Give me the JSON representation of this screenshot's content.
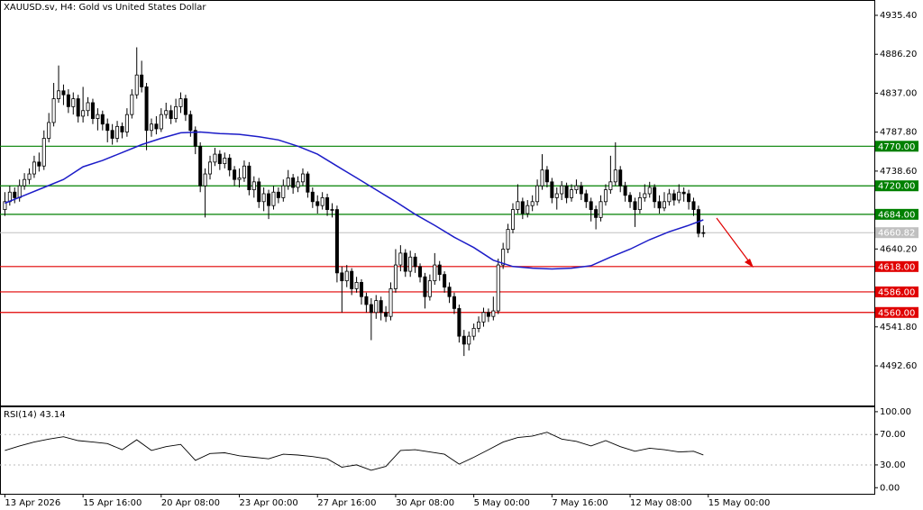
{
  "chart_data": {
    "type": "candlestick",
    "title": "XAUUSD.sv, H4:  Gold vs United States Dollar",
    "up_color": "#ffffff",
    "down_color": "#000000",
    "edge_color": "#000000",
    "xlim": [
      -1,
      178
    ],
    "ylim": [
      4442.5,
      4954.75
    ],
    "xticks": [
      {
        "value": 0,
        "label": "13 Apr 2026"
      },
      {
        "value": 16,
        "label": "15 Apr 16:00"
      },
      {
        "value": 32,
        "label": "20 Apr 08:00"
      },
      {
        "value": 48,
        "label": "23 Apr 00:00"
      },
      {
        "value": 64,
        "label": "27 Apr 16:00"
      },
      {
        "value": 80,
        "label": "30 Apr 08:00"
      },
      {
        "value": 96,
        "label": "5 May 00:00"
      },
      {
        "value": 112,
        "label": "7 May 16:00"
      },
      {
        "value": 128,
        "label": "12 May 08:00"
      },
      {
        "value": 144,
        "label": "15 May 00:00"
      }
    ],
    "yticks": [
      {
        "value": 4935.4,
        "label": "4935.40"
      },
      {
        "value": 4886.2,
        "label": "4886.20"
      },
      {
        "value": 4837,
        "label": "4837.00"
      },
      {
        "value": 4787.8,
        "label": "4787.80"
      },
      {
        "value": 4738.6,
        "label": "4738.60"
      },
      {
        "value": 4640.2,
        "label": "4640.20"
      },
      {
        "value": 4541.8,
        "label": "4541.80"
      },
      {
        "value": 4492.6,
        "label": "4492.60"
      }
    ],
    "open": [
      4690,
      4700,
      4712,
      4705,
      4720,
      4728,
      4735,
      4750,
      4745,
      4780,
      4800,
      4830,
      4840,
      4835,
      4820,
      4830,
      4808,
      4815,
      4825,
      4805,
      4810,
      4798,
      4790,
      4780,
      4795,
      4788,
      4810,
      4835,
      4860,
      4845,
      4790,
      4798,
      4792,
      4810,
      4815,
      4805,
      4820,
      4830,
      4810,
      4790,
      4770,
      4720,
      4735,
      4750,
      4760,
      4748,
      4755,
      4740,
      4728,
      4730,
      4745,
      4715,
      4725,
      4700,
      4710,
      4695,
      4712,
      4705,
      4720,
      4730,
      4718,
      4725,
      4735,
      4712,
      4700,
      4695,
      4705,
      4690,
      4690,
      4610,
      4600,
      4612,
      4590,
      4598,
      4580,
      4570,
      4560,
      4575,
      4560,
      4555,
      4590,
      4620,
      4635,
      4612,
      4630,
      4618,
      4605,
      4580,
      4600,
      4620,
      4608,
      4592,
      4580,
      4565,
      4530,
      4520,
      4530,
      4540,
      4548,
      4560,
      4555,
      4562,
      4620,
      4640,
      4665,
      4690,
      4700,
      4685,
      4695,
      4700,
      4720,
      4740,
      4725,
      4705,
      4710,
      4720,
      4705,
      4715,
      4720,
      4710,
      4700,
      4690,
      4680,
      4700,
      4715,
      4725,
      4740,
      4720,
      4708,
      4700,
      4690,
      4705,
      4710,
      4718,
      4700,
      4692,
      4700,
      4710,
      4702,
      4712,
      4710,
      4700,
      4690,
      4660
    ],
    "high": [
      4712,
      4720,
      4718,
      4728,
      4736,
      4742,
      4758,
      4762,
      4790,
      4812,
      4850,
      4872,
      4848,
      4842,
      4838,
      4835,
      4845,
      4832,
      4830,
      4818,
      4815,
      4805,
      4798,
      4802,
      4800,
      4818,
      4842,
      4895,
      4878,
      4850,
      4805,
      4808,
      4818,
      4825,
      4822,
      4830,
      4838,
      4835,
      4815,
      4795,
      4775,
      4742,
      4758,
      4768,
      4765,
      4762,
      4760,
      4745,
      4742,
      4752,
      4750,
      4732,
      4730,
      4718,
      4715,
      4720,
      4718,
      4728,
      4740,
      4735,
      4732,
      4742,
      4738,
      4718,
      4708,
      4712,
      4710,
      4698,
      4695,
      4618,
      4620,
      4616,
      4605,
      4602,
      4585,
      4578,
      4582,
      4580,
      4568,
      4598,
      4640,
      4645,
      4640,
      4638,
      4635,
      4622,
      4610,
      4608,
      4635,
      4625,
      4612,
      4598,
      4585,
      4570,
      4538,
      4536,
      4546,
      4555,
      4566,
      4565,
      4580,
      4628,
      4648,
      4672,
      4698,
      4722,
      4705,
      4702,
      4708,
      4728,
      4760,
      4745,
      4730,
      4718,
      4726,
      4724,
      4722,
      4728,
      4725,
      4715,
      4705,
      4695,
      4708,
      4722,
      4758,
      4775,
      4745,
      4725,
      4712,
      4705,
      4712,
      4722,
      4725,
      4722,
      4708,
      4712,
      4716,
      4715,
      4722,
      4718,
      4715,
      4705,
      4695,
      4670
    ],
    "low": [
      4682,
      4695,
      4698,
      4700,
      4715,
      4722,
      4730,
      4738,
      4740,
      4775,
      4795,
      4825,
      4822,
      4812,
      4810,
      4800,
      4800,
      4808,
      4798,
      4790,
      4790,
      4775,
      4772,
      4775,
      4780,
      4782,
      4805,
      4830,
      4838,
      4765,
      4782,
      4785,
      4788,
      4805,
      4798,
      4800,
      4812,
      4802,
      4782,
      4760,
      4712,
      4680,
      4728,
      4745,
      4740,
      4742,
      4732,
      4720,
      4718,
      4725,
      4708,
      4705,
      4692,
      4688,
      4678,
      4690,
      4698,
      4700,
      4715,
      4710,
      4712,
      4720,
      4705,
      4692,
      4685,
      4690,
      4682,
      4680,
      4598,
      4560,
      4592,
      4582,
      4585,
      4570,
      4560,
      4525,
      4552,
      4550,
      4548,
      4550,
      4585,
      4612,
      4605,
      4605,
      4610,
      4598,
      4565,
      4575,
      4595,
      4600,
      4585,
      4572,
      4558,
      4522,
      4505,
      4512,
      4525,
      4535,
      4542,
      4548,
      4550,
      4558,
      4615,
      4635,
      4660,
      4685,
      4678,
      4680,
      4688,
      4695,
      4715,
      4718,
      4698,
      4690,
      4702,
      4698,
      4700,
      4710,
      4702,
      4692,
      4675,
      4665,
      4675,
      4695,
      4710,
      4720,
      4712,
      4700,
      4692,
      4668,
      4685,
      4700,
      4705,
      4692,
      4685,
      4688,
      4695,
      4695,
      4698,
      4700,
      4690,
      4682,
      4655,
      4655
    ],
    "close": [
      4700,
      4712,
      4705,
      4720,
      4728,
      4735,
      4750,
      4745,
      4780,
      4800,
      4830,
      4840,
      4835,
      4820,
      4830,
      4808,
      4815,
      4825,
      4805,
      4810,
      4798,
      4790,
      4780,
      4795,
      4788,
      4810,
      4835,
      4860,
      4845,
      4790,
      4798,
      4792,
      4810,
      4815,
      4805,
      4820,
      4830,
      4810,
      4790,
      4770,
      4720,
      4735,
      4750,
      4760,
      4748,
      4755,
      4740,
      4728,
      4730,
      4745,
      4715,
      4725,
      4700,
      4710,
      4695,
      4712,
      4705,
      4720,
      4730,
      4718,
      4725,
      4735,
      4712,
      4700,
      4695,
      4705,
      4690,
      4690,
      4610,
      4600,
      4612,
      4590,
      4598,
      4580,
      4570,
      4560,
      4575,
      4560,
      4555,
      4590,
      4620,
      4635,
      4612,
      4630,
      4618,
      4605,
      4580,
      4600,
      4620,
      4608,
      4592,
      4580,
      4565,
      4530,
      4520,
      4530,
      4540,
      4548,
      4560,
      4555,
      4562,
      4620,
      4640,
      4665,
      4690,
      4700,
      4685,
      4695,
      4700,
      4720,
      4740,
      4725,
      4705,
      4710,
      4720,
      4705,
      4715,
      4720,
      4710,
      4700,
      4690,
      4680,
      4700,
      4715,
      4725,
      4740,
      4720,
      4708,
      4700,
      4690,
      4705,
      4710,
      4718,
      4700,
      4692,
      4700,
      4710,
      4702,
      4712,
      4710,
      4700,
      4690,
      4660,
      4660.82
    ],
    "ma": {
      "color": "#1c1cc8",
      "x": [
        0,
        4,
        8,
        12,
        16,
        20,
        24,
        28,
        32,
        36,
        40,
        44,
        48,
        52,
        56,
        60,
        64,
        68,
        72,
        76,
        80,
        84,
        88,
        92,
        96,
        100,
        104,
        108,
        112,
        116,
        120,
        124,
        128,
        132,
        136,
        140,
        143
      ],
      "values": [
        4698,
        4708,
        4718,
        4728,
        4744,
        4752,
        4762,
        4772,
        4780,
        4787,
        4788,
        4786,
        4785,
        4782,
        4778,
        4770,
        4760,
        4745,
        4730,
        4715,
        4700,
        4684,
        4670,
        4655,
        4642,
        4626,
        4618,
        4616,
        4615,
        4616,
        4619,
        4630,
        4640,
        4652,
        4662,
        4670,
        4677
      ]
    },
    "levels": [
      {
        "value": 4770,
        "label": "4770.00",
        "color": "#008000"
      },
      {
        "value": 4720,
        "label": "4720.00",
        "color": "#008000"
      },
      {
        "value": 4684,
        "label": "4684.00",
        "color": "#008000"
      },
      {
        "value": 4618,
        "label": "4618.00",
        "color": "#e00000"
      },
      {
        "value": 4586,
        "label": "4586.00",
        "color": "#e00000"
      },
      {
        "value": 4560,
        "label": "4560.00",
        "color": "#e00000"
      }
    ],
    "last_price": {
      "value": 4660.82,
      "label": "4660.82",
      "color": "#c0c0c0"
    },
    "rsi": {
      "title": "RSI(14) 43.14",
      "color": "#000000",
      "ylim": [
        -8,
        107
      ],
      "yticks": [
        {
          "value": 100,
          "label": "100.00"
        },
        {
          "value": 70,
          "label": "70.00"
        },
        {
          "value": 30,
          "label": "30.00"
        },
        {
          "value": 0,
          "label": "0.00"
        }
      ],
      "x": [
        0,
        3,
        6,
        9,
        12,
        15,
        18,
        21,
        24,
        27,
        30,
        33,
        36,
        39,
        42,
        45,
        48,
        51,
        54,
        57,
        60,
        63,
        66,
        69,
        72,
        75,
        78,
        81,
        84,
        87,
        90,
        93,
        96,
        99,
        102,
        105,
        108,
        111,
        114,
        117,
        120,
        123,
        126,
        129,
        132,
        135,
        138,
        141,
        143
      ],
      "values": [
        49,
        55,
        60,
        64,
        67,
        62,
        60,
        58,
        50,
        63,
        49,
        54,
        57,
        36,
        45,
        46,
        42,
        40,
        38,
        44,
        43,
        41,
        38,
        27,
        30,
        23,
        28,
        49,
        50,
        47,
        44,
        31,
        40,
        50,
        60,
        66,
        68,
        73,
        64,
        61,
        55,
        62,
        54,
        48,
        52,
        50,
        47,
        48,
        43.14
      ]
    }
  }
}
